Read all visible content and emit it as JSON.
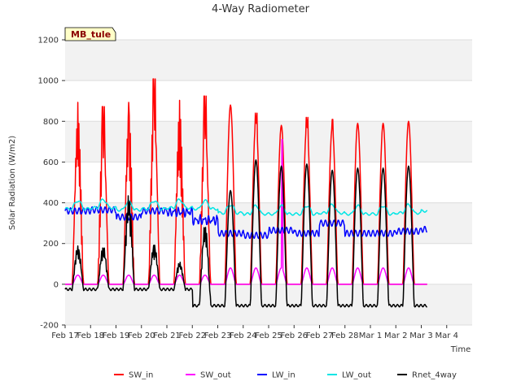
{
  "chart_data": {
    "type": "line",
    "title": "4-Way Radiometer",
    "xlabel": "Time",
    "ylabel": "Solar Radiation (W/m2)",
    "site_tag": "MB_tule",
    "xlim": [
      0,
      16
    ],
    "ylim": [
      -200,
      1200
    ],
    "yticks": [
      -200,
      0,
      200,
      400,
      600,
      800,
      1000,
      1200
    ],
    "xticks": [
      {
        "x": 0,
        "label": "Feb 17"
      },
      {
        "x": 1,
        "label": "Feb 18"
      },
      {
        "x": 2,
        "label": "Feb 19"
      },
      {
        "x": 3,
        "label": "Feb 20"
      },
      {
        "x": 4,
        "label": "Feb 21"
      },
      {
        "x": 5,
        "label": "Feb 22"
      },
      {
        "x": 6,
        "label": "Feb 23"
      },
      {
        "x": 7,
        "label": "Feb 24"
      },
      {
        "x": 8,
        "label": "Feb 25"
      },
      {
        "x": 9,
        "label": "Feb 26"
      },
      {
        "x": 10,
        "label": "Feb 27"
      },
      {
        "x": 11,
        "label": "Feb 28"
      },
      {
        "x": 12,
        "label": "Mar 1"
      },
      {
        "x": 13,
        "label": "Mar 2"
      },
      {
        "x": 14,
        "label": "Mar 3"
      },
      {
        "x": 15,
        "label": "Mar 4"
      }
    ],
    "x_units": "days since Feb 17",
    "grid": "horizontal bands",
    "legend_position": "bottom",
    "series": [
      {
        "name": "SW_in",
        "color": "#ff0000",
        "x": [],
        "y": []
      },
      {
        "name": "SW_out",
        "color": "#ff00ff",
        "x": [],
        "y": []
      },
      {
        "name": "LW_in",
        "color": "#0000ff",
        "x": [],
        "y": []
      },
      {
        "name": "LW_out",
        "color": "#00e5e5",
        "x": [],
        "y": []
      },
      {
        "name": "Rnet_4way",
        "color": "#000000",
        "x": [],
        "y": []
      }
    ]
  }
}
